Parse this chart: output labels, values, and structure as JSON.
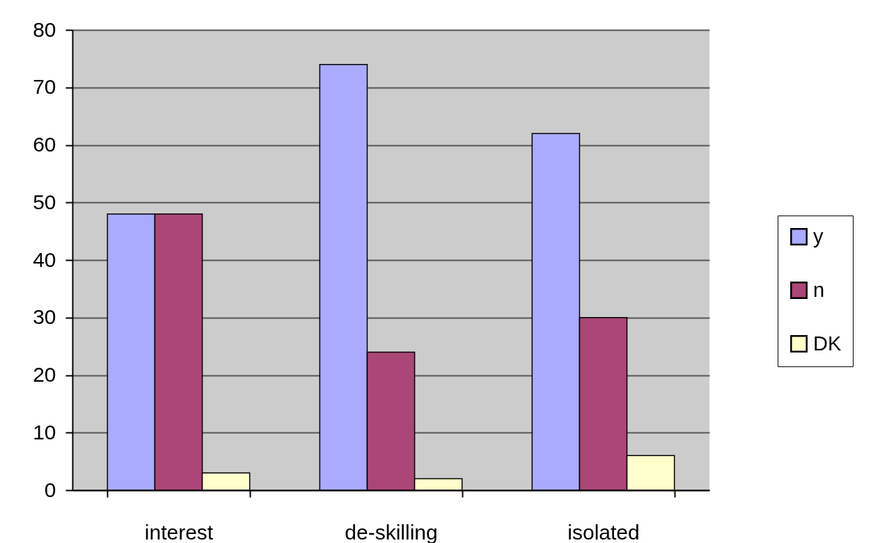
{
  "chart_data": {
    "type": "bar",
    "categories": [
      "interest",
      "de-skilling",
      "isolated"
    ],
    "series": [
      {
        "name": "y",
        "color": "#aaaaff",
        "values": [
          48,
          74,
          62
        ]
      },
      {
        "name": "n",
        "color": "#aa4777",
        "values": [
          48,
          24,
          30
        ]
      },
      {
        "name": "DK",
        "color": "#ffffcc",
        "values": [
          3,
          2,
          6
        ]
      }
    ],
    "ylim": [
      0,
      80
    ],
    "yticks": [
      0,
      10,
      20,
      30,
      40,
      50,
      60,
      70,
      80
    ],
    "grid": "y",
    "legend": "right"
  }
}
